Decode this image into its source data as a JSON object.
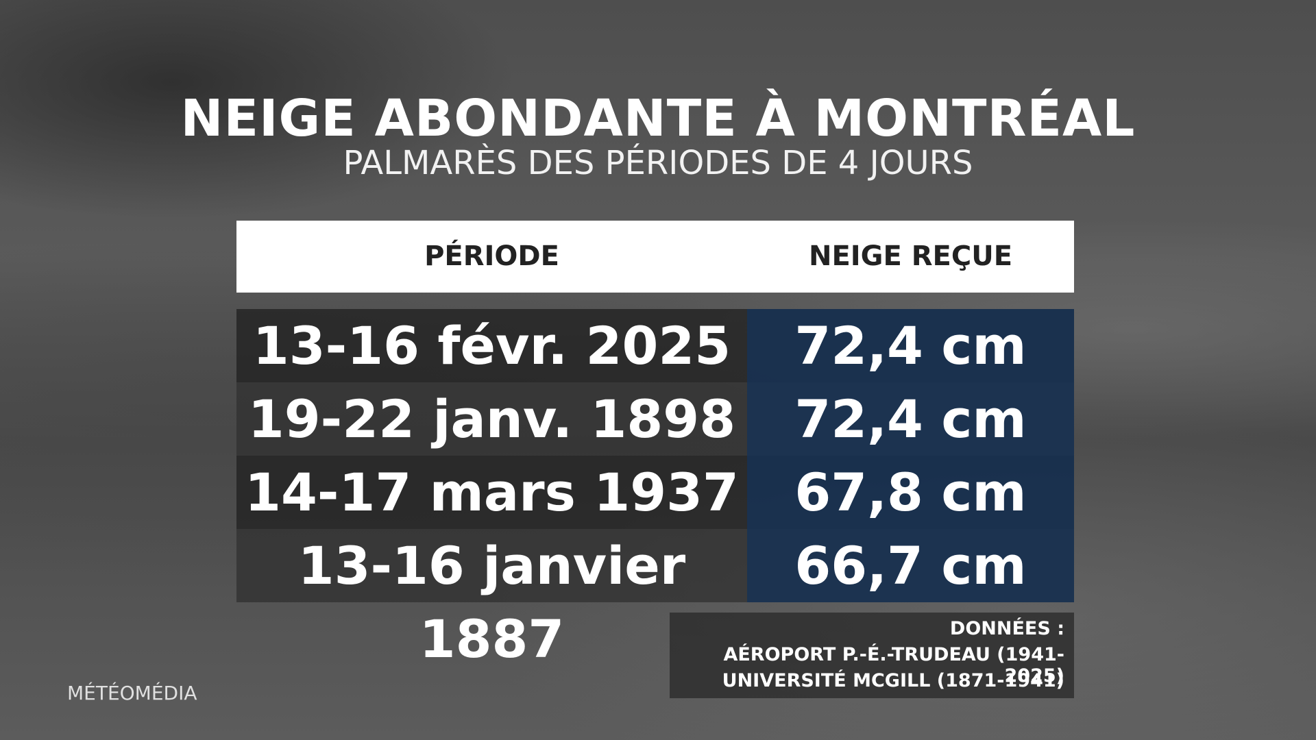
{
  "header": {
    "title": "NEIGE ABONDANTE À MONTRÉAL",
    "subtitle": "PALMARÈS DES PÉRIODES DE 4 JOURS"
  },
  "table": {
    "headers": [
      "PÉRIODE",
      "NEIGE REÇUE"
    ],
    "rows": [
      [
        "13-16 févr. 2025",
        "72,4 cm"
      ],
      [
        "19-22 janv. 1898",
        "72,4 cm"
      ],
      [
        "14-17 mars 1937",
        "67,8 cm"
      ],
      [
        "13-16 janvier 1887",
        "66,7 cm"
      ]
    ]
  },
  "source": {
    "lines": [
      "DONNÉES :",
      "AÉROPORT P.-É.-TRUDEAU (1941-2025)",
      "UNIVERSITÉ MCGILL (1871-1941)"
    ]
  },
  "logo": "MÉTÉOMÉDIA"
}
